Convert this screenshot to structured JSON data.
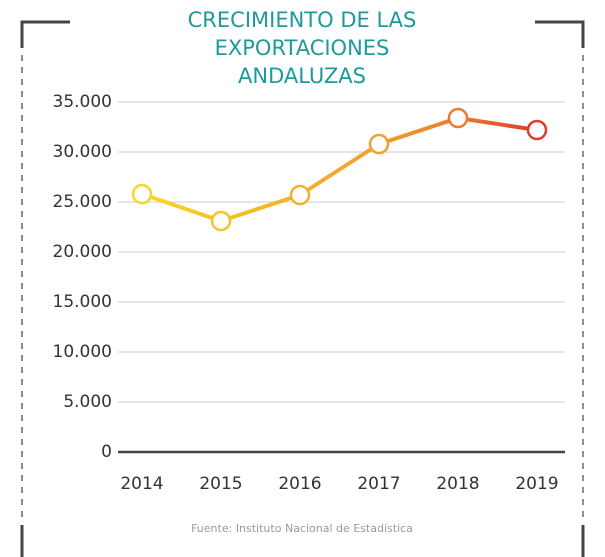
{
  "chart_data": {
    "type": "line",
    "title": "CRECIMIENTO DE LAS EXPORTACIONES ANDALUZAS",
    "source": "Fuente: Instituto Nacional de Estadística",
    "categories": [
      "2014",
      "2015",
      "2016",
      "2017",
      "2018",
      "2019"
    ],
    "series": [
      {
        "values": [
          25800,
          23100,
          25700,
          30800,
          33400,
          32200
        ],
        "point_colors": [
          "#f5d72a",
          "#f5c423",
          "#f3b12a",
          "#efa02f",
          "#ea7a32",
          "#dd3c2c"
        ]
      }
    ],
    "ylim": [
      0,
      35000
    ],
    "yticks": [
      0,
      {
        "value": 5000,
        "label": "5.000"
      },
      {
        "value": 10000,
        "label": "10.000"
      },
      {
        "value": 15000,
        "label": "15.000"
      },
      {
        "value": 20000,
        "label": "20.000"
      },
      {
        "value": 25000,
        "label": "25.000"
      },
      {
        "value": 30000,
        "label": "30.000"
      },
      {
        "value": 35000,
        "label": "35.000"
      }
    ],
    "grid": true
  }
}
